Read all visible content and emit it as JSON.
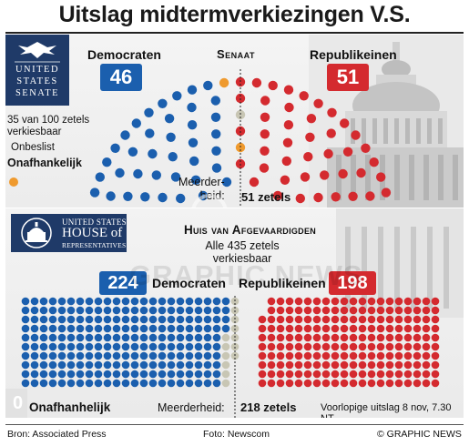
{
  "title": "Uitslag midtermverkiezingen V.S.",
  "senate": {
    "logo_lines": [
      "UNITED",
      "STATES",
      "SENATE"
    ],
    "chamber_label": "Senaat",
    "dem_label": "Democraten",
    "rep_label": "Republikeinen",
    "dem_seats": "46",
    "rep_seats": "51",
    "note": [
      "35 van 100 zetels",
      "verkiesbaar"
    ],
    "unlisted_label": "Onbeslist",
    "independent_label": "Onafhankelijk",
    "majority_label": [
      "Meerder-",
      "heid:"
    ],
    "majority_value": "51 zetels"
  },
  "house": {
    "logo_lines": [
      "UNITED STATES",
      "HOUSE of",
      "REPRESENTATIVES"
    ],
    "chamber_label": "Huis van Afgevaardigden",
    "note": [
      "Alle 435 zetels",
      "verkiesbaar"
    ],
    "dem_seats": "224",
    "rep_seats": "198",
    "dem_label": "Democraten",
    "rep_label": "Republikeinen",
    "independent_count": "0",
    "independent_label": "Onafhanhelijk",
    "majority_label": "Meerderheid:",
    "majority_value": "218 zetels",
    "prelim": "Voorlopige uitslag 8 nov, 7.30 NT"
  },
  "footer": {
    "source": "Bron: Associated Press",
    "photo": "Foto: Newscom",
    "credit": "© GRAPHIC NEWS"
  },
  "watermark": "GRAPHIC NEWS",
  "colors": {
    "democrat": "#1b5fae",
    "republican": "#d42a2f",
    "undecided": "#c8c6b4",
    "independent": "#ef9a2e",
    "navy_logo": "#1f3a68"
  },
  "chart_data": [
    {
      "type": "parliament",
      "chamber": "Senaat",
      "total_seats": 100,
      "series": [
        {
          "name": "Democraten",
          "value": 46
        },
        {
          "name": "Onafhankelijk",
          "value": 2
        },
        {
          "name": "Onbeslist",
          "value": 1
        },
        {
          "name": "Republikeinen",
          "value": 51
        }
      ],
      "majority": 51
    },
    {
      "type": "parliament",
      "chamber": "Huis van Afgevaardigden",
      "total_seats": 435,
      "series": [
        {
          "name": "Democraten",
          "value": 224
        },
        {
          "name": "Onbeslist",
          "value": 13
        },
        {
          "name": "Republikeinen",
          "value": 198
        },
        {
          "name": "Onafhanhelijk",
          "value": 0
        }
      ],
      "majority": 218
    }
  ]
}
